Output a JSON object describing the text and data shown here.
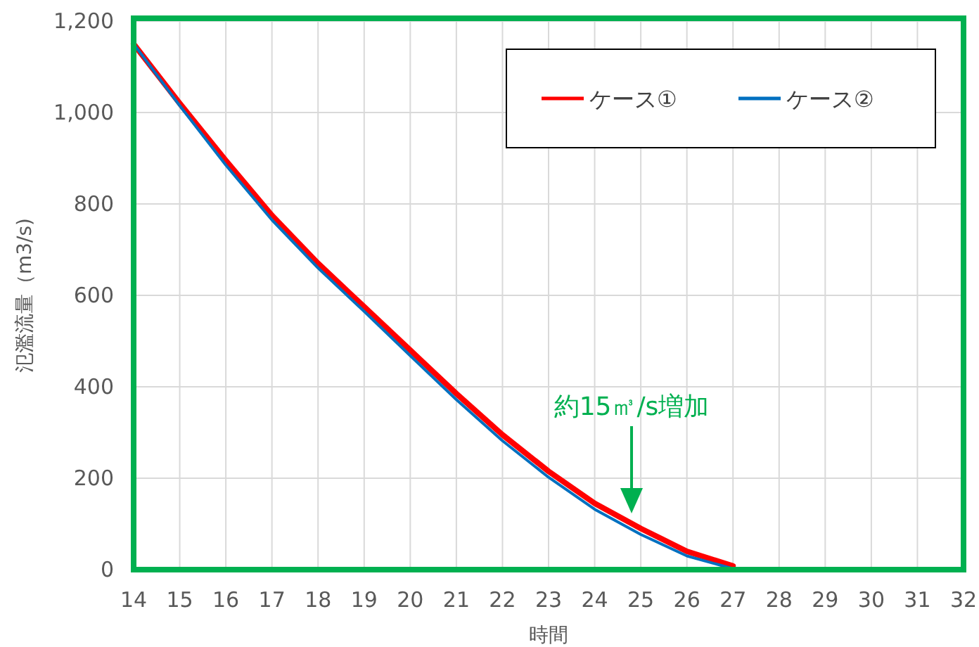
{
  "chart_data": {
    "type": "line",
    "xlabel": "時間",
    "ylabel": "氾濫流量（m3/s)",
    "xlim": [
      14,
      32
    ],
    "xticks": [
      14,
      15,
      16,
      17,
      18,
      19,
      20,
      21,
      22,
      23,
      24,
      25,
      26,
      27,
      28,
      29,
      30,
      31,
      32
    ],
    "ylim": [
      0,
      1200
    ],
    "yticks": [
      0,
      200,
      400,
      600,
      800,
      {
        "value": 1000,
        "label": "1,000"
      },
      {
        "value": 1200,
        "label": "1,200"
      }
    ],
    "grid": true,
    "legend": "top right",
    "x": [
      14,
      15,
      16,
      17,
      18,
      19,
      20,
      21,
      22,
      23,
      24,
      25,
      26,
      27
    ],
    "series": [
      {
        "name": "ケース①",
        "color": "#ff0000",
        "values": [
          1150,
          1020,
          895,
          775,
          670,
          575,
          480,
          385,
          295,
          215,
          145,
          90,
          40,
          8
        ]
      },
      {
        "name": "ケース②",
        "color": "#0070c0",
        "values": [
          1150,
          1015,
          885,
          765,
          660,
          565,
          468,
          372,
          282,
          202,
          132,
          77,
          30,
          2
        ]
      }
    ],
    "annotations": [
      "約15㎥/s増加"
    ]
  }
}
